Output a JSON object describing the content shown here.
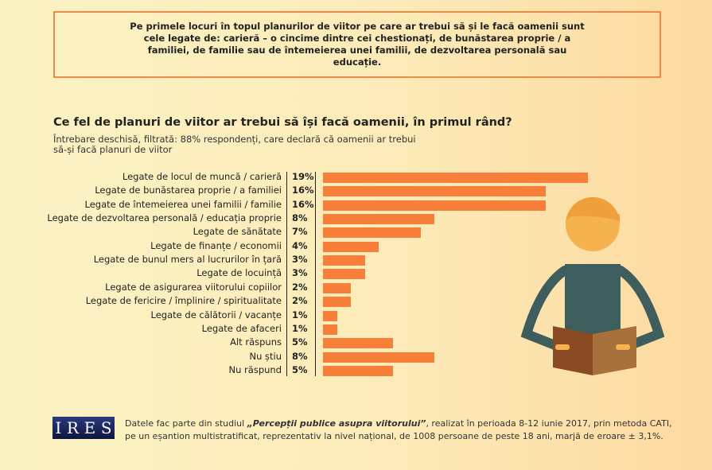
{
  "header": {
    "text": "Pe primele locuri în topul planurilor de viitor pe care ar trebui să și le facă oamenii sunt cele legate de: carieră – o cincime dintre cei chestionați, de bunăstarea proprie / a familiei, de familie sau de întemeierea unei familii, de dezvoltarea personală sau educație."
  },
  "chart_data": {
    "type": "bar",
    "title": "Ce fel de planuri de viitor ar trebui să își facă oamenii, în primul rând?",
    "subtitle": "Întrebare deschisă, filtrată: 88% respondenți, care declară că oamenii ar trebui să-și facă planuri de viitor",
    "categories": [
      "Legate de locul de muncă / carieră",
      "Legate de bunăstarea proprie / a familiei",
      "Legate de întemeierea unei familii / familie",
      "Legate de dezvoltarea personală / educația proprie",
      "Legate de sănătate",
      "Legate de finanțe / economii",
      "Legate de bunul mers al lucrurilor în țară",
      "Legate de locuință",
      "Legate de asigurarea viitorului copiilor",
      "Legate de fericire / împlinire / spiritualitate",
      "Legate de călătorii / vacanțe",
      "Legate de afaceri",
      "Alt răspuns",
      "Nu știu",
      "Nu răspund"
    ],
    "values": [
      19,
      16,
      16,
      8,
      7,
      4,
      3,
      3,
      2,
      2,
      1,
      1,
      5,
      8,
      5
    ],
    "value_labels": [
      "19%",
      "16%",
      "16%",
      "8%",
      "7%",
      "4%",
      "3%",
      "3%",
      "2%",
      "2%",
      "1%",
      "1%",
      "5%",
      "8%",
      "5%"
    ],
    "bar_color": "#f77f3a"
  },
  "footer": {
    "logo": "IRES",
    "pre": "Datele fac parte din studiul ",
    "study": "„Percepții publice asupra viitorului”",
    "post": ", realizat în perioada 8-12 iunie 2017, prin metoda CATI,",
    "line2": "pe un eșantion multistratificat, reprezentativ la nivel național, de 1008 persoane de peste 18 ani, marjă de eroare ± 3,1%."
  }
}
